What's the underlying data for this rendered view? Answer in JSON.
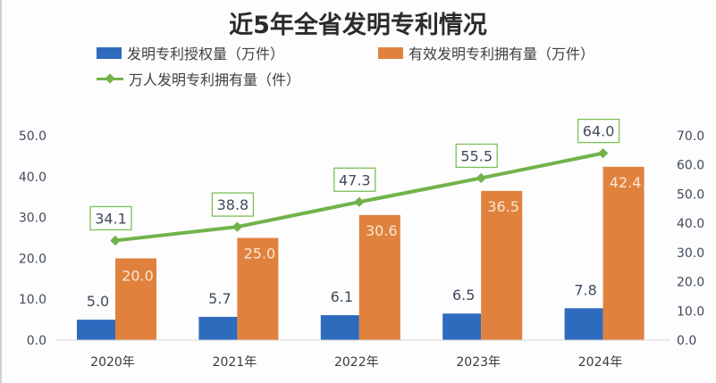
{
  "chart_data": {
    "type": "bar",
    "title": "近5年全省发明专利情况",
    "categories": [
      "2020年",
      "2021年",
      "2022年",
      "2023年",
      "2024年"
    ],
    "series": [
      {
        "name": "发明专利授权量（万件）",
        "kind": "bar",
        "axis": "left",
        "color": "#2e6bbd",
        "values": [
          5.0,
          5.7,
          6.1,
          6.5,
          7.8
        ],
        "labels": [
          "5.0",
          "5.7",
          "6.1",
          "6.5",
          "7.8"
        ]
      },
      {
        "name": "有效发明专利拥有量（万件）",
        "kind": "bar",
        "axis": "left",
        "color": "#e0823d",
        "values": [
          20.0,
          25.0,
          30.6,
          36.5,
          42.4
        ],
        "labels": [
          "20.0",
          "25.0",
          "30.6",
          "36.5",
          "42.4"
        ]
      },
      {
        "name": "万人发明专利拥有量（件）",
        "kind": "line",
        "axis": "right",
        "color": "#70b34a",
        "values": [
          34.1,
          38.8,
          47.3,
          55.5,
          64.0
        ],
        "labels": [
          "34.1",
          "38.8",
          "47.3",
          "55.5",
          "64.0"
        ]
      }
    ],
    "ylim_left": [
      0,
      50
    ],
    "ylim_right": [
      0,
      70
    ],
    "yticks_left": [
      "0.0",
      "10.0",
      "20.0",
      "30.0",
      "40.0",
      "50.0"
    ],
    "yticks_right": [
      "0.0",
      "10.0",
      "20.0",
      "30.0",
      "40.0",
      "50.0",
      "60.0",
      "70.0"
    ],
    "xlabel": "",
    "ylabel": "",
    "grid": false,
    "legend_position": "top"
  }
}
